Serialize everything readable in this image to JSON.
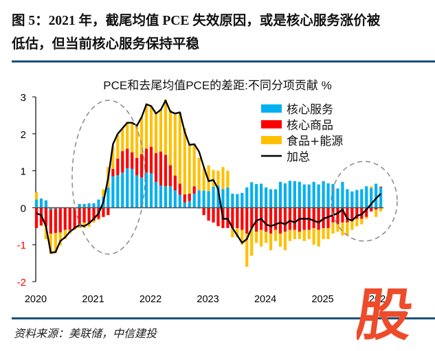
{
  "header": {
    "title_line1": "图 5：2021 年，截尾均值 PCE 失效原因，或是核心服务涨价被",
    "title_line2": "低估，但当前核心服务保持平稳"
  },
  "footer": {
    "source": "资料来源：美联储，中信建投"
  },
  "watermark": {
    "glyph": "股",
    "color": "#ee4b2b"
  },
  "chart_data": {
    "type": "bar",
    "stacked": true,
    "title": "PCE和去尾均值PCE的差距:不同分项贡献 %",
    "xlabel": "",
    "ylabel": "",
    "ylim": [
      -2,
      3
    ],
    "yticks": [
      3,
      2,
      1,
      0,
      -1,
      -2
    ],
    "xticks": [
      "2020",
      "2021",
      "2022",
      "2023",
      "2024",
      "2025",
      "2026"
    ],
    "x_start": "2020-01",
    "frequency": "monthly",
    "legend_position": "top-right",
    "annotations": [
      "dashed ellipse around 2021 (underestimation period)",
      "dashed ellipse around late 2025 - early 2026"
    ],
    "series": [
      {
        "name": "核心服务",
        "kind": "bar",
        "color": "#00b0f0",
        "values": [
          0.22,
          0.25,
          0.2,
          -0.05,
          -0.03,
          -0.02,
          0,
          0,
          0,
          0.1,
          0.1,
          0.12,
          0.12,
          0.22,
          0.3,
          0.55,
          0.85,
          0.88,
          0.95,
          1.07,
          1.05,
          0.88,
          0.82,
          0.95,
          0.93,
          0.7,
          0.6,
          0.58,
          0.58,
          0.47,
          0.35,
          0.14,
          0.18,
          0.38,
          0.47,
          0.46,
          0.45,
          0.57,
          0.6,
          0.5,
          0.55,
          0.38,
          0.37,
          0.4,
          0.55,
          0.69,
          0.64,
          0.65,
          0.55,
          0.5,
          0.5,
          0.7,
          0.66,
          0.73,
          0.72,
          0.7,
          0.63,
          0.63,
          0.7,
          0.63,
          0.72,
          0.66,
          0.64,
          0.52,
          0.7,
          0.5,
          0.44,
          0.48,
          0.5,
          0.58,
          0.53,
          0.65,
          0.55
        ]
      },
      {
        "name": "核心商品",
        "kind": "bar",
        "color": "#ff0000",
        "values": [
          -0.55,
          -0.48,
          -0.5,
          -0.65,
          -0.65,
          -0.65,
          -0.6,
          -0.6,
          -0.55,
          -0.45,
          -0.4,
          -0.4,
          -0.35,
          -0.3,
          -0.25,
          -0.2,
          0.2,
          0.45,
          0.58,
          0.53,
          0.45,
          0.47,
          0.63,
          0.65,
          0.72,
          0.78,
          0.92,
          0.85,
          0.57,
          0.4,
          0.3,
          0.22,
          0.2,
          0.2,
          -0.02,
          -0.2,
          -0.35,
          -0.4,
          -0.5,
          -0.55,
          -0.55,
          -0.55,
          -0.55,
          -0.6,
          -0.7,
          -0.55,
          -0.65,
          -0.6,
          -0.65,
          -0.7,
          -0.6,
          -0.7,
          -0.65,
          -0.6,
          -0.6,
          -0.65,
          -0.6,
          -0.6,
          -0.55,
          -0.6,
          -0.55,
          -0.55,
          -0.4,
          -0.45,
          -0.4,
          -0.4,
          -0.35,
          -0.3,
          -0.3,
          -0.25,
          -0.1,
          -0.05,
          0.02
        ]
      },
      {
        "name": "食品+能源",
        "kind": "bar",
        "color": "#ffc000",
        "values": [
          0.2,
          -0.02,
          -0.35,
          -0.55,
          -0.55,
          -0.35,
          -0.25,
          -0.1,
          -0.05,
          -0.1,
          -0.15,
          -0.12,
          -0.05,
          -0.03,
          0.2,
          0.55,
          0.6,
          0.65,
          0.6,
          0.72,
          0.8,
          0.87,
          1.0,
          1.2,
          1.12,
          1.08,
          1.15,
          1.5,
          1.5,
          1.68,
          1.93,
          1.8,
          1.35,
          1.15,
          0.88,
          0.6,
          0.7,
          0.45,
          0.4,
          0.6,
          0.45,
          -0.25,
          -0.25,
          -0.4,
          -0.9,
          -0.75,
          -0.3,
          -0.45,
          -0.3,
          -0.45,
          -0.3,
          -0.35,
          -0.5,
          -0.3,
          -0.25,
          -0.2,
          -0.3,
          -0.25,
          -0.45,
          -0.45,
          -0.3,
          -0.3,
          -0.3,
          -0.2,
          -0.35,
          -0.35,
          -0.25,
          -0.2,
          -0.15,
          -0.05,
          0.05,
          -0.2,
          -0.1
        ]
      },
      {
        "name": "加总",
        "kind": "line",
        "color": "#000000",
        "values": [
          -0.15,
          -0.2,
          -0.5,
          -1.22,
          -1.2,
          -0.9,
          -0.8,
          -0.65,
          -0.55,
          -0.47,
          -0.5,
          -0.42,
          -0.3,
          -0.15,
          0.15,
          0.8,
          1.72,
          2.0,
          2.15,
          2.3,
          2.3,
          2.22,
          2.45,
          2.8,
          2.75,
          2.55,
          2.65,
          2.9,
          2.6,
          2.55,
          2.58,
          2.05,
          1.7,
          1.72,
          1.52,
          1.1,
          0.72,
          0.75,
          0.5,
          -0.3,
          -0.3,
          -0.55,
          -0.75,
          -0.95,
          -0.85,
          -0.55,
          -0.35,
          -0.3,
          -0.45,
          -0.5,
          -0.45,
          -0.4,
          -0.45,
          -0.35,
          -0.4,
          -0.3,
          -0.3,
          -0.3,
          -0.35,
          -0.4,
          -0.3,
          -0.25,
          -0.2,
          -0.15,
          -0.05,
          -0.3,
          -0.35,
          -0.22,
          -0.18,
          -0.05,
          0.1,
          0.25,
          0.38
        ]
      }
    ]
  }
}
